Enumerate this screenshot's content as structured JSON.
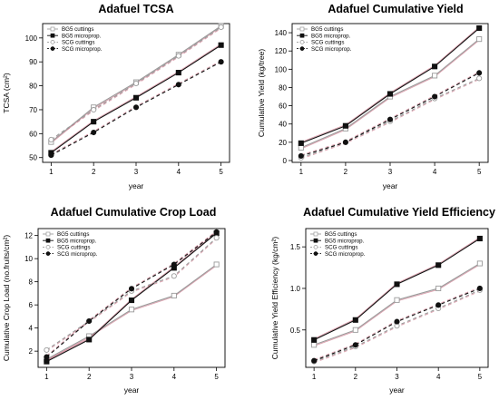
{
  "styles": {
    "BG5 cuttings": {
      "color": "#9a9a9a",
      "dash": "",
      "marker": "square-open"
    },
    "BG5 microprop.": {
      "color": "#111111",
      "dash": "",
      "marker": "square"
    },
    "SCG cuttings": {
      "color": "#9a9a9a",
      "dash": "4,3",
      "marker": "circle-open"
    },
    "SCG microprop.": {
      "color": "#111111",
      "dash": "4,3",
      "marker": "circle"
    },
    "accent_red": "#c0506a"
  },
  "chart_data": [
    {
      "id": "tcsa",
      "type": "line",
      "title": "Adafuel TCSA",
      "xlabel": "year",
      "ylabel": "TCSA (cm²)",
      "x": [
        1,
        2,
        3,
        4,
        5
      ],
      "xlim": [
        0.8,
        5.2
      ],
      "ylim": [
        48,
        106
      ],
      "yticks": [
        50,
        60,
        70,
        80,
        90,
        100
      ],
      "legend_position": "top-left",
      "series": [
        {
          "name": "BG5 cuttings",
          "values": [
            56.5,
            71,
            81.5,
            93,
            105
          ]
        },
        {
          "name": "BG5 microprop.",
          "values": [
            52,
            65,
            75,
            85.5,
            97
          ]
        },
        {
          "name": "SCG cuttings",
          "values": [
            57.5,
            70,
            81,
            92.5,
            104.5
          ]
        },
        {
          "name": "SCG microprop.",
          "values": [
            51,
            60.5,
            71,
            80.5,
            90
          ]
        }
      ]
    },
    {
      "id": "cumyield",
      "type": "line",
      "title": "Adafuel Cumulative Yield",
      "xlabel": "year",
      "ylabel": "Cumulative Yield (kg/tree)",
      "x": [
        1,
        2,
        3,
        4,
        5
      ],
      "xlim": [
        0.8,
        5.2
      ],
      "ylim": [
        -2,
        150
      ],
      "yticks": [
        0,
        20,
        40,
        60,
        80,
        100,
        120,
        140
      ],
      "legend_position": "top-left",
      "series": [
        {
          "name": "BG5 cuttings",
          "values": [
            14,
            35,
            70,
            93,
            133
          ]
        },
        {
          "name": "BG5 microprop.",
          "values": [
            19,
            38,
            73,
            103,
            145
          ]
        },
        {
          "name": "SCG cuttings",
          "values": [
            3,
            20,
            43,
            68,
            90
          ]
        },
        {
          "name": "SCG microprop.",
          "values": [
            5,
            20,
            45,
            70,
            96
          ]
        }
      ]
    },
    {
      "id": "cropload",
      "type": "line",
      "title": "Adafuel Cumulative Crop Load",
      "xlabel": "year",
      "ylabel": "Cumulative Crop Load (no.fruits/cm²)",
      "x": [
        1,
        2,
        3,
        4,
        5
      ],
      "xlim": [
        0.8,
        5.2
      ],
      "ylim": [
        0.6,
        12.6
      ],
      "yticks": [
        2,
        4,
        6,
        8,
        10,
        12
      ],
      "legend_position": "top-left",
      "series": [
        {
          "name": "BG5 cuttings",
          "values": [
            1.3,
            3.3,
            5.6,
            6.8,
            9.5
          ]
        },
        {
          "name": "BG5 microprop.",
          "values": [
            1.1,
            3.0,
            6.4,
            9.2,
            12.2
          ]
        },
        {
          "name": "SCG cuttings",
          "values": [
            2.1,
            4.6,
            7.2,
            8.5,
            11.8
          ]
        },
        {
          "name": "SCG microprop.",
          "values": [
            1.5,
            4.6,
            7.4,
            9.5,
            12.3
          ]
        }
      ]
    },
    {
      "id": "yieldeff",
      "type": "line",
      "title": "Adafuel Cumulative Yield Efficiency",
      "xlabel": "year",
      "ylabel": "Cumulative Yield Efficiency (kg/cm²)",
      "x": [
        1,
        2,
        3,
        4,
        5
      ],
      "xlim": [
        0.8,
        5.2
      ],
      "ylim": [
        0.05,
        1.72
      ],
      "yticks": [
        0.5,
        1.0,
        1.5
      ],
      "ytick_labels": [
        "0.5",
        "1.0",
        "1.5"
      ],
      "legend_position": "top-left",
      "series": [
        {
          "name": "BG5 cuttings",
          "values": [
            0.32,
            0.5,
            0.86,
            1.0,
            1.3
          ]
        },
        {
          "name": "BG5 microprop.",
          "values": [
            0.38,
            0.62,
            1.05,
            1.28,
            1.6
          ]
        },
        {
          "name": "SCG cuttings",
          "values": [
            0.12,
            0.3,
            0.55,
            0.76,
            0.98
          ]
        },
        {
          "name": "SCG microprop.",
          "values": [
            0.13,
            0.32,
            0.6,
            0.8,
            1.0
          ]
        }
      ]
    }
  ]
}
